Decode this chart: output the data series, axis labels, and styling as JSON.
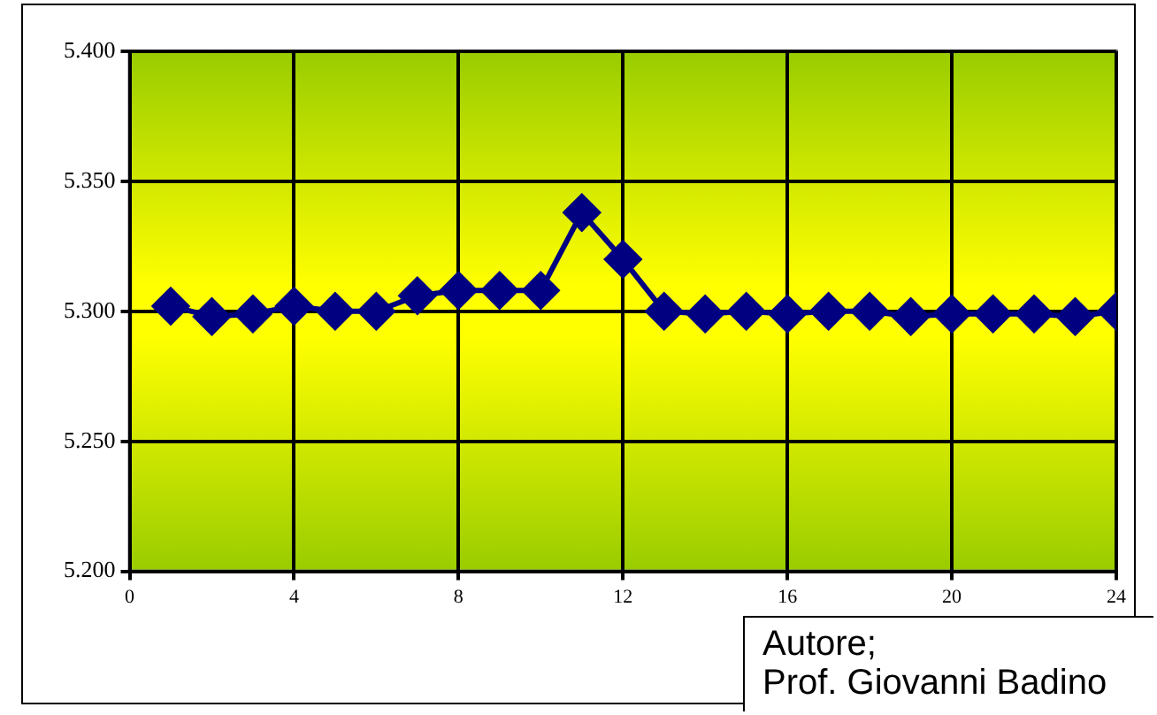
{
  "chart_data": {
    "type": "line",
    "x": [
      1,
      2,
      3,
      4,
      5,
      6,
      7,
      8,
      9,
      10,
      11,
      12,
      13,
      14,
      15,
      16,
      17,
      18,
      19,
      20,
      21,
      22,
      23,
      24
    ],
    "series": [
      {
        "color": "#000080",
        "values": [
          5.302,
          5.298,
          5.299,
          5.302,
          5.3,
          5.3,
          5.306,
          5.308,
          5.308,
          5.308,
          5.338,
          5.32,
          5.3,
          5.299,
          5.3,
          5.299,
          5.3,
          5.3,
          5.298,
          5.299,
          5.299,
          5.299,
          5.298,
          5.3
        ]
      }
    ],
    "xlim": [
      0,
      24
    ],
    "xticks": [
      0,
      4,
      8,
      12,
      16,
      20,
      24
    ],
    "ylim": [
      5.2,
      5.4
    ],
    "yticks": [
      {
        "value": 5.2,
        "label": "5.200"
      },
      {
        "value": 5.25,
        "label": "5.250"
      },
      {
        "value": 5.3,
        "label": "5.300"
      },
      {
        "value": 5.35,
        "label": "5.350"
      },
      {
        "value": 5.4,
        "label": "5.400"
      }
    ],
    "grid": true,
    "legend": false,
    "marker": "diamond",
    "line_style": "solid",
    "annotations": [
      "Autore;",
      "Prof. Giovanni Badino"
    ]
  }
}
